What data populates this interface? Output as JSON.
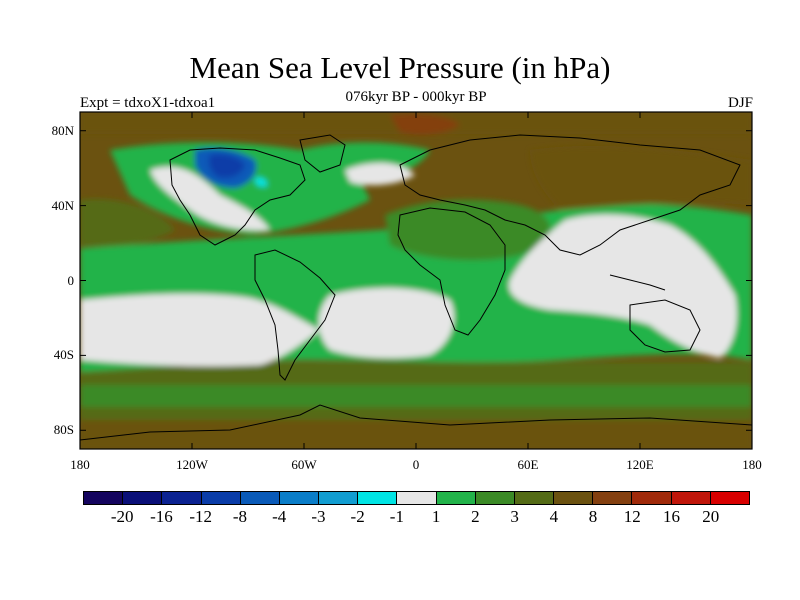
{
  "title": "Mean Sea Level Pressure (in hPa)",
  "subtitle": "076kyr BP - 000kyr BP",
  "experiment": "Expt = tdxoX1-tdxoa1",
  "season": "DJF",
  "map": {
    "lat_ticks": [
      "80N",
      "40N",
      "0",
      "40S",
      "80S"
    ],
    "lon_ticks": [
      "180",
      "120W",
      "60W",
      "0",
      "60E",
      "120E",
      "180"
    ],
    "lat_values": [
      80,
      40,
      0,
      -40,
      -80
    ],
    "lon_values": [
      -180,
      -120,
      -60,
      0,
      60,
      120,
      180
    ],
    "lat_range": [
      -90,
      90
    ],
    "lon_range": [
      -180,
      180
    ]
  },
  "colorbar": {
    "labels": [
      "-20",
      "-16",
      "-12",
      "-8",
      "-4",
      "-3",
      "-2",
      "-1",
      "1",
      "2",
      "3",
      "4",
      "8",
      "12",
      "16",
      "20"
    ],
    "colors": [
      "#14045e",
      "#0a0f78",
      "#0b2291",
      "#0a3ca8",
      "#0a5ab8",
      "#0a7dc8",
      "#119dd1",
      "#00e4e4",
      "#e6e6e6",
      "#22b34a",
      "#3b8a26",
      "#546b16",
      "#6b5210",
      "#844010",
      "#a02a0a",
      "#c0160a",
      "#d80000"
    ]
  },
  "chart_data": {
    "type": "heatmap",
    "title": "Mean Sea Level Pressure (in hPa)",
    "subtitle": "076kyr BP - 000kyr BP",
    "xlim": [
      -180,
      180
    ],
    "ylim": [
      -90,
      90
    ],
    "contour_levels": [
      -20,
      -16,
      -12,
      -8,
      -4,
      -3,
      -2,
      -1,
      1,
      2,
      3,
      4,
      8,
      12,
      16,
      20
    ]
  }
}
